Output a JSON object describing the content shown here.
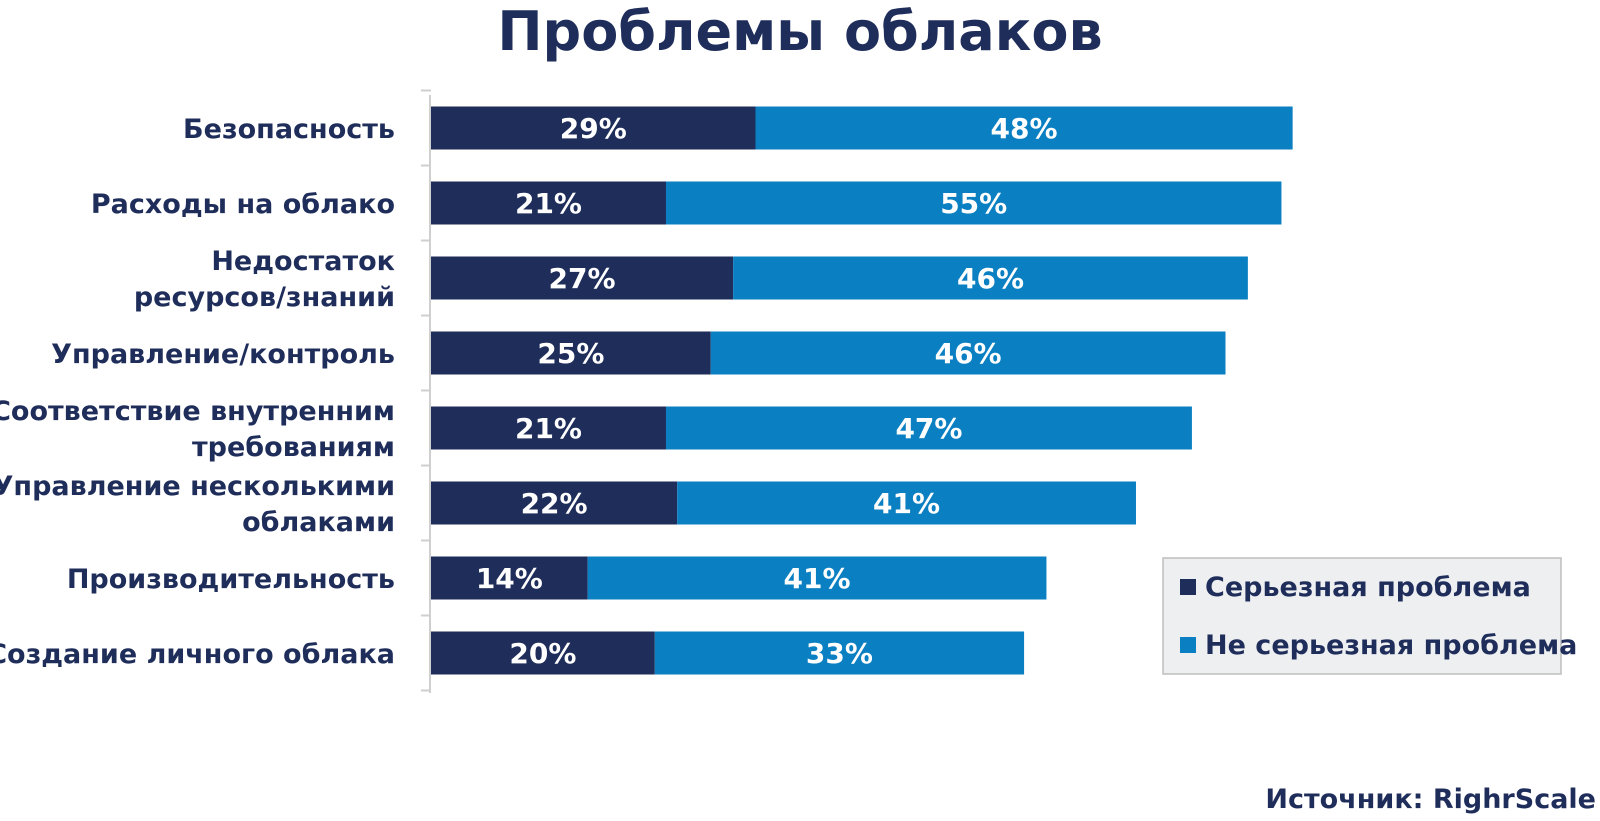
{
  "chart_data": {
    "type": "bar",
    "orientation": "horizontal",
    "stacked": true,
    "title": "Проблемы облаков",
    "categories": [
      [
        "Безопасность"
      ],
      [
        "Расходы на облако"
      ],
      [
        "Недостаток",
        "ресурсов/знаний"
      ],
      [
        "Управление/контроль"
      ],
      [
        "Соответствие внутренним",
        "требованиям"
      ],
      [
        "Управление несколькими",
        "облаками"
      ],
      [
        "Производительность"
      ],
      [
        "Создание личного облака"
      ]
    ],
    "series": [
      {
        "name": "Серьезная проблема",
        "color": "#1f2d5a",
        "values": [
          29,
          21,
          27,
          25,
          21,
          22,
          14,
          20
        ],
        "labels": [
          "29%",
          "21%",
          "27%",
          "25%",
          "21%",
          "22%",
          "14%",
          "20%"
        ]
      },
      {
        "name": "Не серьезная проблема",
        "color": "#0a7fc2",
        "values": [
          48,
          55,
          46,
          46,
          47,
          41,
          41,
          33
        ],
        "labels": [
          "48%",
          "55%",
          "46%",
          "46%",
          "47%",
          "41%",
          "41%",
          "33%"
        ]
      }
    ],
    "xlim": [
      0,
      100
    ],
    "grid": false,
    "legend_position": "bottom-right"
  },
  "source": "Источник: RighrScale",
  "colors": {
    "text": "#1f2d5a",
    "axis": "#cfcfcf",
    "legend_bg": "#eeeff1",
    "legend_border": "#bdbdbd"
  }
}
